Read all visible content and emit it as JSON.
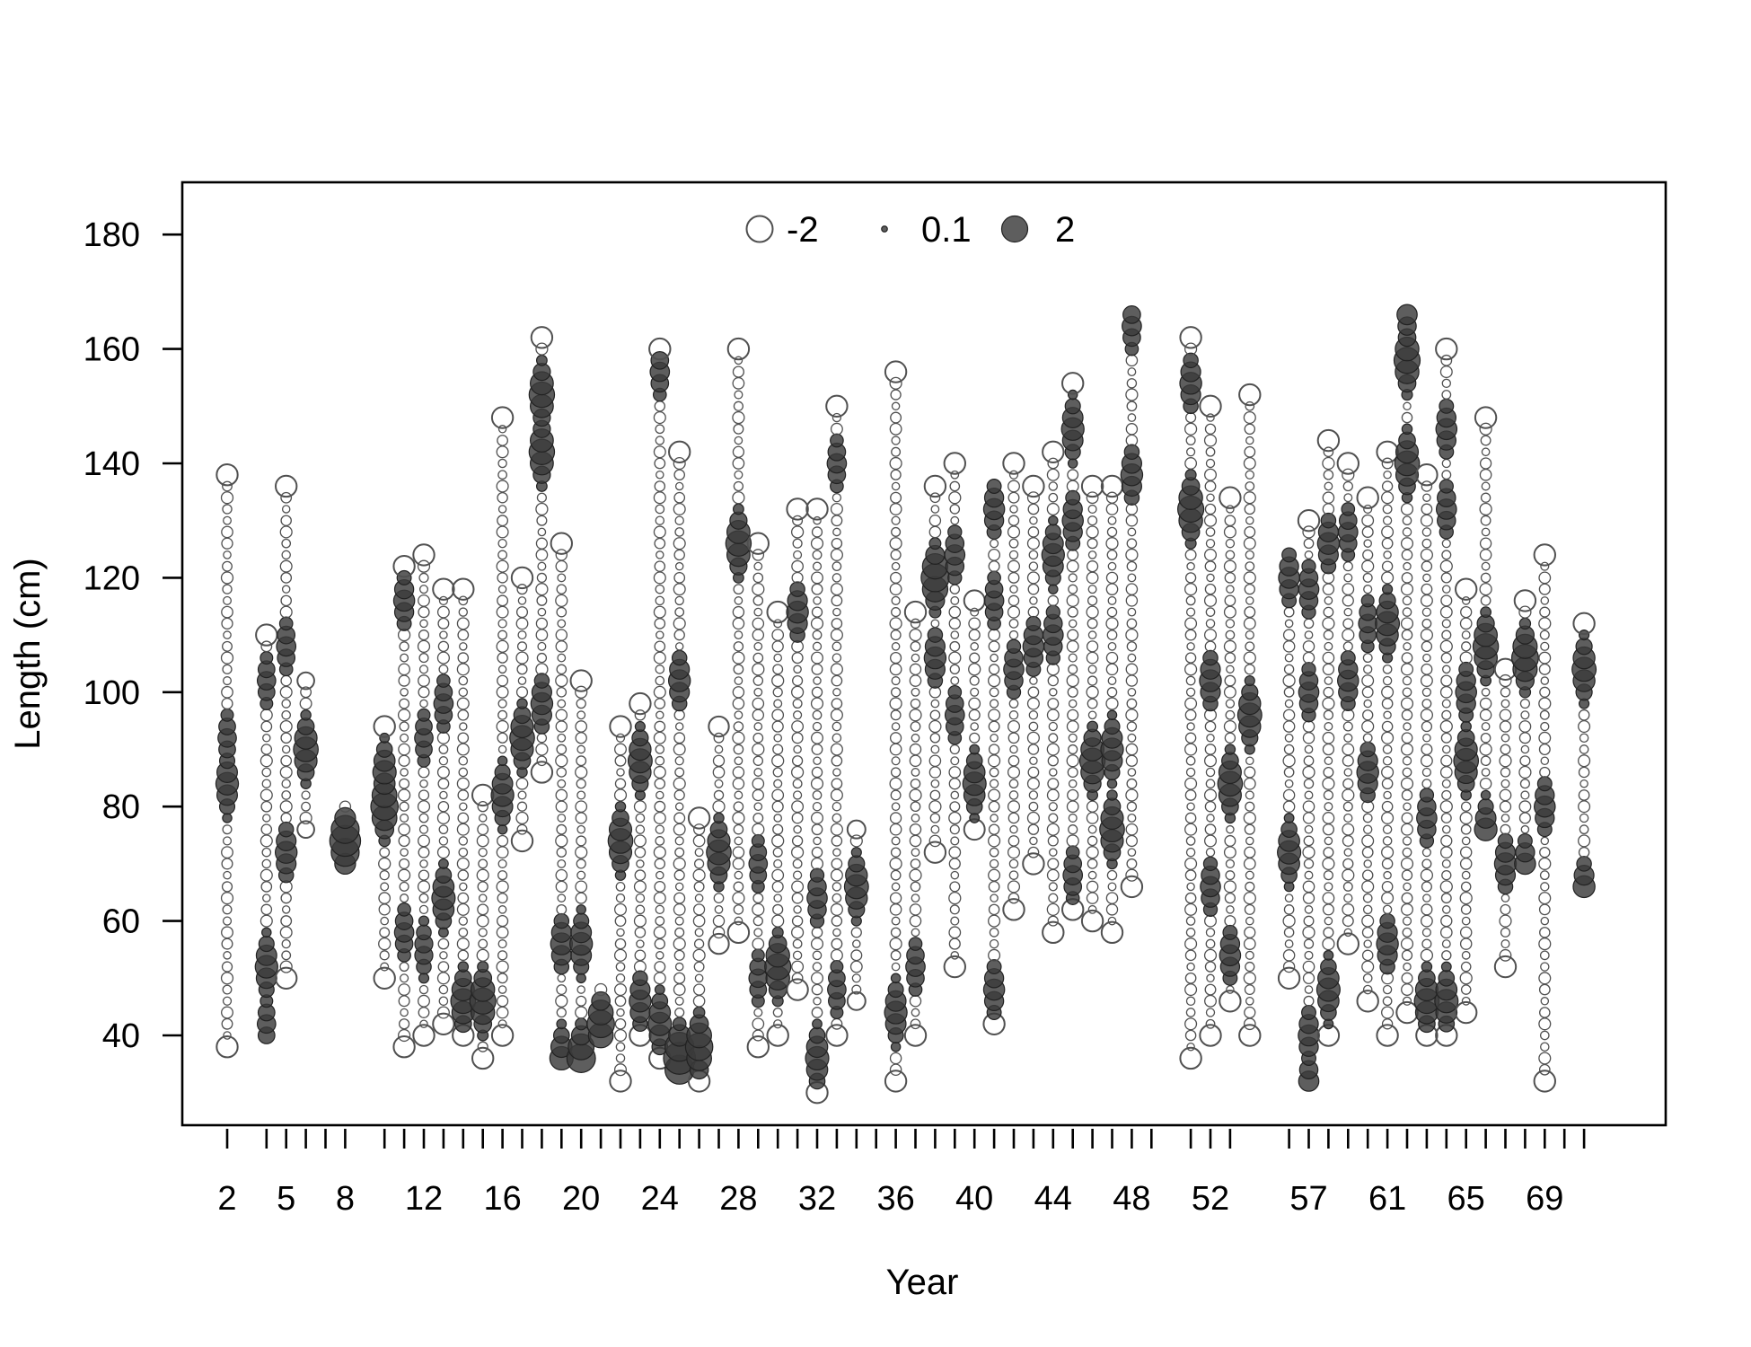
{
  "chart_data": {
    "type": "scatter",
    "title": "",
    "xlabel": "Year",
    "ylabel": "Length (cm)",
    "xlim": [
      0.6,
      71.8
    ],
    "ylim": [
      29.0,
      189.5
    ],
    "x_ticks": [
      2,
      4,
      5,
      6,
      7,
      8,
      10,
      11,
      12,
      13,
      14,
      15,
      16,
      17,
      18,
      19,
      20,
      21,
      22,
      23,
      24,
      25,
      26,
      27,
      28,
      29,
      30,
      31,
      32,
      33,
      34,
      35,
      36,
      37,
      38,
      39,
      40,
      41,
      42,
      43,
      44,
      45,
      46,
      47,
      48,
      49,
      51,
      52,
      53,
      56,
      57,
      58,
      59,
      60,
      61,
      62,
      63,
      64,
      65,
      66,
      67,
      68,
      69,
      70,
      71
    ],
    "x_tick_labels": [
      "2",
      "5",
      "8",
      "12",
      "16",
      "20",
      "24",
      "28",
      "32",
      "36",
      "40",
      "44",
      "48",
      "52",
      "57",
      "61",
      "65",
      "69"
    ],
    "x_tick_label_values": [
      2,
      5,
      8,
      12,
      16,
      20,
      24,
      28,
      32,
      36,
      40,
      44,
      48,
      52,
      57,
      61,
      65,
      69
    ],
    "y_ticks": [
      40,
      60,
      80,
      100,
      120,
      140,
      160,
      180
    ],
    "legend": {
      "position": "top-center",
      "entries": [
        {
          "label": "-2",
          "value": -2
        },
        {
          "label": "0.1",
          "value": 0.1
        },
        {
          "label": "2",
          "value": 2
        }
      ]
    },
    "colors": {
      "positive_fill": "#3a3a3a",
      "negative_stroke": "#505050",
      "background": "#ffffff"
    },
    "grid": false,
    "series": [
      {
        "year": 2,
        "lmin": 38,
        "lmax": 138,
        "peaks": [
          [
            84,
            1.5
          ],
          [
            92,
            1.0
          ]
        ]
      },
      {
        "year": 4,
        "lmin": 40,
        "lmax": 110,
        "peaks": [
          [
            52,
            1.5
          ],
          [
            102,
            1.0
          ],
          [
            42,
            1.0
          ]
        ]
      },
      {
        "year": 5,
        "lmin": 50,
        "lmax": 136,
        "peaks": [
          [
            72,
            1.4
          ],
          [
            108,
            1.1
          ]
        ]
      },
      {
        "year": 6,
        "lmin": 76,
        "lmax": 102,
        "peaks": [
          [
            90,
            1.8
          ]
        ]
      },
      {
        "year": 8,
        "lmin": 70,
        "lmax": 80,
        "peaks": [
          [
            74,
            2.8
          ]
        ]
      },
      {
        "year": 10,
        "lmin": 50,
        "lmax": 94,
        "peaks": [
          [
            80,
            2.2
          ],
          [
            86,
            1.6
          ]
        ]
      },
      {
        "year": 11,
        "lmin": 38,
        "lmax": 122,
        "peaks": [
          [
            116,
            1.3
          ],
          [
            58,
            1.1
          ]
        ]
      },
      {
        "year": 12,
        "lmin": 40,
        "lmax": 124,
        "peaks": [
          [
            92,
            1.0
          ],
          [
            55,
            1.0
          ]
        ]
      },
      {
        "year": 13,
        "lmin": 42,
        "lmax": 118,
        "peaks": [
          [
            64,
            1.6
          ],
          [
            98,
            1.1
          ]
        ]
      },
      {
        "year": 14,
        "lmin": 40,
        "lmax": 118,
        "peaks": [
          [
            46,
            1.8
          ]
        ]
      },
      {
        "year": 15,
        "lmin": 36,
        "lmax": 82,
        "peaks": [
          [
            46,
            2.0
          ]
        ]
      },
      {
        "year": 16,
        "lmin": 40,
        "lmax": 148,
        "peaks": [
          [
            82,
            1.5
          ]
        ]
      },
      {
        "year": 17,
        "lmin": 74,
        "lmax": 120,
        "peaks": [
          [
            92,
            1.8
          ]
        ]
      },
      {
        "year": 18,
        "lmin": 86,
        "lmax": 162,
        "peaks": [
          [
            152,
            1.9
          ],
          [
            142,
            1.9
          ],
          [
            98,
            1.4
          ]
        ]
      },
      {
        "year": 19,
        "lmin": 36,
        "lmax": 126,
        "peaks": [
          [
            36,
            1.6
          ],
          [
            56,
            1.4
          ]
        ]
      },
      {
        "year": 20,
        "lmin": 36,
        "lmax": 102,
        "peaks": [
          [
            36,
            2.4
          ],
          [
            56,
            1.5
          ]
        ]
      },
      {
        "year": 21,
        "lmin": 40,
        "lmax": 48,
        "peaks": [
          [
            42,
            2.2
          ]
        ]
      },
      {
        "year": 22,
        "lmin": 32,
        "lmax": 94,
        "peaks": [
          [
            74,
            1.8
          ]
        ]
      },
      {
        "year": 23,
        "lmin": 40,
        "lmax": 98,
        "peaks": [
          [
            88,
            1.7
          ],
          [
            46,
            1.4
          ]
        ]
      },
      {
        "year": 24,
        "lmin": 36,
        "lmax": 160,
        "peaks": [
          [
            42,
            1.6
          ],
          [
            156,
            1.1
          ]
        ]
      },
      {
        "year": 25,
        "lmin": 34,
        "lmax": 142,
        "peaks": [
          [
            36,
            3.0
          ],
          [
            102,
            1.4
          ]
        ]
      },
      {
        "year": 26,
        "lmin": 32,
        "lmax": 78,
        "peaks": [
          [
            38,
            2.2
          ]
        ]
      },
      {
        "year": 27,
        "lmin": 56,
        "lmax": 94,
        "peaks": [
          [
            72,
            1.8
          ]
        ]
      },
      {
        "year": 28,
        "lmin": 58,
        "lmax": 160,
        "peaks": [
          [
            126,
            1.9
          ]
        ]
      },
      {
        "year": 29,
        "lmin": 38,
        "lmax": 126,
        "peaks": [
          [
            50,
            1.0
          ],
          [
            70,
            1.0
          ]
        ]
      },
      {
        "year": 30,
        "lmin": 40,
        "lmax": 114,
        "peaks": [
          [
            52,
            2.0
          ]
        ]
      },
      {
        "year": 31,
        "lmin": 48,
        "lmax": 132,
        "peaks": [
          [
            114,
            1.4
          ]
        ]
      },
      {
        "year": 32,
        "lmin": 30,
        "lmax": 132,
        "peaks": [
          [
            36,
            1.6
          ],
          [
            64,
            1.2
          ]
        ]
      },
      {
        "year": 33,
        "lmin": 40,
        "lmax": 150,
        "peaks": [
          [
            140,
            1.1
          ],
          [
            48,
            1.0
          ]
        ]
      },
      {
        "year": 34,
        "lmin": 46,
        "lmax": 76,
        "peaks": [
          [
            66,
            1.7
          ]
        ]
      },
      {
        "year": 36,
        "lmin": 32,
        "lmax": 156,
        "peaks": [
          [
            44,
            1.5
          ]
        ]
      },
      {
        "year": 37,
        "lmin": 40,
        "lmax": 114,
        "peaks": [
          [
            52,
            1.1
          ]
        ]
      },
      {
        "year": 38,
        "lmin": 72,
        "lmax": 136,
        "peaks": [
          [
            120,
            2.3
          ],
          [
            106,
            1.4
          ]
        ]
      },
      {
        "year": 39,
        "lmin": 52,
        "lmax": 140,
        "peaks": [
          [
            124,
            1.2
          ],
          [
            96,
            1.1
          ]
        ]
      },
      {
        "year": 40,
        "lmin": 76,
        "lmax": 116,
        "peaks": [
          [
            84,
            1.6
          ]
        ]
      },
      {
        "year": 41,
        "lmin": 42,
        "lmax": 136,
        "peaks": [
          [
            132,
            1.3
          ],
          [
            48,
            1.3
          ],
          [
            116,
            1.1
          ]
        ]
      },
      {
        "year": 42,
        "lmin": 62,
        "lmax": 140,
        "peaks": [
          [
            104,
            1.2
          ]
        ]
      },
      {
        "year": 43,
        "lmin": 70,
        "lmax": 136,
        "peaks": [
          [
            108,
            1.3
          ]
        ]
      },
      {
        "year": 44,
        "lmin": 58,
        "lmax": 142,
        "peaks": [
          [
            124,
            1.5
          ],
          [
            110,
            1.2
          ]
        ]
      },
      {
        "year": 45,
        "lmin": 62,
        "lmax": 154,
        "peaks": [
          [
            146,
            1.5
          ],
          [
            130,
            1.3
          ],
          [
            68,
            1.1
          ]
        ]
      },
      {
        "year": 46,
        "lmin": 60,
        "lmax": 136,
        "peaks": [
          [
            88,
            1.9
          ]
        ]
      },
      {
        "year": 47,
        "lmin": 58,
        "lmax": 136,
        "peaks": [
          [
            76,
            1.8
          ],
          [
            90,
            1.5
          ]
        ]
      },
      {
        "year": 48,
        "lmin": 66,
        "lmax": 166,
        "peaks": [
          [
            138,
            1.4
          ],
          [
            164,
            1.1
          ]
        ]
      },
      {
        "year": 51,
        "lmin": 36,
        "lmax": 162,
        "peaks": [
          [
            132,
            2.0
          ],
          [
            154,
            1.4
          ]
        ]
      },
      {
        "year": 52,
        "lmin": 40,
        "lmax": 150,
        "peaks": [
          [
            102,
            1.4
          ],
          [
            66,
            1.2
          ]
        ]
      },
      {
        "year": 53,
        "lmin": 46,
        "lmax": 134,
        "peaks": [
          [
            84,
            1.8
          ],
          [
            54,
            1.3
          ]
        ]
      },
      {
        "year": 54,
        "lmin": 40,
        "lmax": 152,
        "peaks": [
          [
            96,
            1.7
          ]
        ]
      },
      {
        "year": 56,
        "lmin": 50,
        "lmax": 124,
        "peaks": [
          [
            72,
            1.6
          ],
          [
            120,
            1.3
          ]
        ]
      },
      {
        "year": 57,
        "lmin": 32,
        "lmax": 130,
        "peaks": [
          [
            40,
            1.3
          ],
          [
            32,
            1.2
          ],
          [
            100,
            1.2
          ],
          [
            118,
            1.2
          ]
        ]
      },
      {
        "year": 58,
        "lmin": 40,
        "lmax": 144,
        "peaks": [
          [
            48,
            1.6
          ],
          [
            126,
            1.4
          ]
        ]
      },
      {
        "year": 59,
        "lmin": 56,
        "lmax": 140,
        "peaks": [
          [
            102,
            1.3
          ],
          [
            128,
            1.1
          ]
        ]
      },
      {
        "year": 60,
        "lmin": 46,
        "lmax": 134,
        "peaks": [
          [
            86,
            1.4
          ],
          [
            112,
            1.0
          ]
        ]
      },
      {
        "year": 61,
        "lmin": 40,
        "lmax": 142,
        "peaks": [
          [
            112,
            1.7
          ],
          [
            56,
            1.4
          ]
        ]
      },
      {
        "year": 62,
        "lmin": 44,
        "lmax": 166,
        "peaks": [
          [
            158,
            2.0
          ],
          [
            140,
            1.8
          ],
          [
            166,
            1.2
          ]
        ]
      },
      {
        "year": 63,
        "lmin": 40,
        "lmax": 138,
        "peaks": [
          [
            46,
            1.8
          ],
          [
            78,
            1.2
          ]
        ]
      },
      {
        "year": 64,
        "lmin": 40,
        "lmax": 160,
        "peaks": [
          [
            46,
            1.6
          ],
          [
            146,
            1.3
          ],
          [
            132,
            1.2
          ]
        ]
      },
      {
        "year": 65,
        "lmin": 44,
        "lmax": 118,
        "peaks": [
          [
            88,
            1.8
          ],
          [
            100,
            1.3
          ]
        ]
      },
      {
        "year": 66,
        "lmin": 76,
        "lmax": 148,
        "peaks": [
          [
            108,
            1.9
          ],
          [
            76,
            1.5
          ]
        ]
      },
      {
        "year": 67,
        "lmin": 52,
        "lmax": 104,
        "peaks": [
          [
            70,
            1.4
          ]
        ]
      },
      {
        "year": 68,
        "lmin": 70,
        "lmax": 116,
        "peaks": [
          [
            106,
            2.1
          ],
          [
            70,
            1.3
          ]
        ]
      },
      {
        "year": 69,
        "lmin": 32,
        "lmax": 124,
        "peaks": [
          [
            80,
            1.3
          ]
        ]
      },
      {
        "year": 71,
        "lmin": 66,
        "lmax": 112,
        "peaks": [
          [
            104,
            1.7
          ],
          [
            66,
            1.4
          ]
        ]
      }
    ]
  }
}
